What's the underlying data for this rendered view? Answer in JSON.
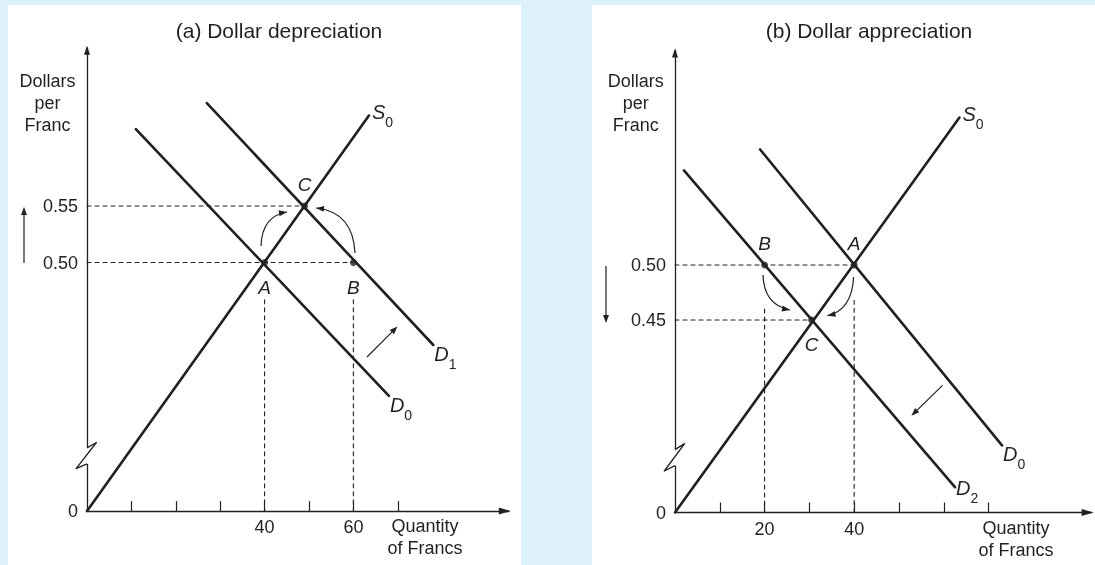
{
  "chart_data": [
    {
      "type": "line",
      "title": "(a) Dollar depreciation",
      "xlabel": "Quantity of Francs",
      "ylabel": "Dollars per Franc",
      "xlim": [
        0,
        95
      ],
      "xticks": [
        {
          "value": 10,
          "label": null
        },
        {
          "value": 20,
          "label": null
        },
        {
          "value": 30,
          "label": null
        },
        40,
        {
          "value": 50,
          "label": null
        },
        60,
        {
          "value": 70,
          "label": null
        }
      ],
      "ylim": [
        0.28,
        0.69
      ],
      "yticks": [
        {
          "value": 0.28,
          "label": "0"
        },
        {
          "value": 0.5,
          "label": "0.50"
        },
        0.55
      ],
      "series": [
        {
          "name": "S$_{0}$",
          "color": "#231f20",
          "x": [
            0,
            63.5
          ],
          "values": [
            0.28,
            0.63
          ]
        },
        {
          "name": "D$_{0}$",
          "color": "#231f20",
          "x": [
            11,
            68
          ],
          "values": [
            0.618,
            0.382
          ]
        },
        {
          "name": "D$_{1}$",
          "color": "#231f20",
          "x": [
            27,
            78
          ],
          "values": [
            0.641,
            0.427
          ]
        },
        {
          "line_style": "dashed",
          "color": "#231f20",
          "x": [
            0,
            49
          ],
          "values": [
            0.55,
            0.55
          ]
        },
        {
          "line_style": "dashed",
          "color": "#231f20",
          "x": [
            0,
            60
          ],
          "values": [
            0.5,
            0.5
          ]
        },
        {
          "line_style": "dashed",
          "color": "#231f20",
          "x": [
            40,
            40
          ],
          "values": [
            0.467,
            0.28
          ]
        },
        {
          "line_style": "dashed",
          "color": "#231f20",
          "x": [
            60,
            60
          ],
          "values": [
            0.467,
            0.28
          ]
        },
        {
          "type": "scatter",
          "marker": "circle",
          "color": "#231f20",
          "x": [
            40,
            60,
            49
          ],
          "values": [
            0.5,
            0.5,
            0.55
          ]
        }
      ],
      "annotations": [
        {
          "text": "A",
          "x": 40,
          "y": 0.5
        },
        {
          "text": "B",
          "x": 60,
          "y": 0.5
        },
        {
          "text": "C",
          "x": 49,
          "y": 0.55
        }
      ]
    },
    {
      "type": "line",
      "title": "(b) Dollar appreciation",
      "xlabel": "Quantity of Francs",
      "ylabel": "Dollars per Franc",
      "xlim": [
        0,
        93
      ],
      "xticks": [
        {
          "value": 10,
          "label": null
        },
        20,
        {
          "value": 30,
          "label": null
        },
        40,
        {
          "value": 50,
          "label": null
        },
        {
          "value": 60,
          "label": null
        },
        {
          "value": 70,
          "label": null
        }
      ],
      "ylim": [
        0.275,
        0.695
      ],
      "yticks": [
        {
          "value": 0.275,
          "label": "0"
        },
        0.45,
        {
          "value": 0.5,
          "label": "0.50"
        }
      ],
      "series": [
        {
          "name": "S$_{0}$",
          "color": "#231f20",
          "x": [
            0,
            63.5
          ],
          "values": [
            0.275,
            0.634
          ]
        },
        {
          "name": "D$_{0}$",
          "color": "#231f20",
          "x": [
            19,
            73
          ],
          "values": [
            0.605,
            0.336
          ]
        },
        {
          "name": "D$_{2}$",
          "color": "#231f20",
          "x": [
            2,
            62.5
          ],
          "values": [
            0.586,
            0.298
          ]
        },
        {
          "line_style": "dashed",
          "color": "#231f20",
          "x": [
            0,
            40
          ],
          "values": [
            0.5,
            0.5
          ]
        },
        {
          "line_style": "dashed",
          "color": "#231f20",
          "x": [
            0,
            30.5
          ],
          "values": [
            0.45,
            0.45
          ]
        },
        {
          "line_style": "dashed",
          "color": "#231f20",
          "x": [
            20,
            20
          ],
          "values": [
            0.46,
            0.275
          ]
        },
        {
          "line_style": "dashed",
          "color": "#231f20",
          "x": [
            40,
            40
          ],
          "values": [
            0.468,
            0.275
          ]
        },
        {
          "type": "scatter",
          "marker": "circle",
          "color": "#231f20",
          "x": [
            20,
            40,
            30.5
          ],
          "values": [
            0.5,
            0.5,
            0.45
          ]
        }
      ],
      "annotations": [
        {
          "text": "B",
          "x": 20,
          "y": 0.5
        },
        {
          "text": "A",
          "x": 40,
          "y": 0.5
        },
        {
          "text": "C",
          "x": 30.5,
          "y": 0.45
        }
      ]
    }
  ]
}
